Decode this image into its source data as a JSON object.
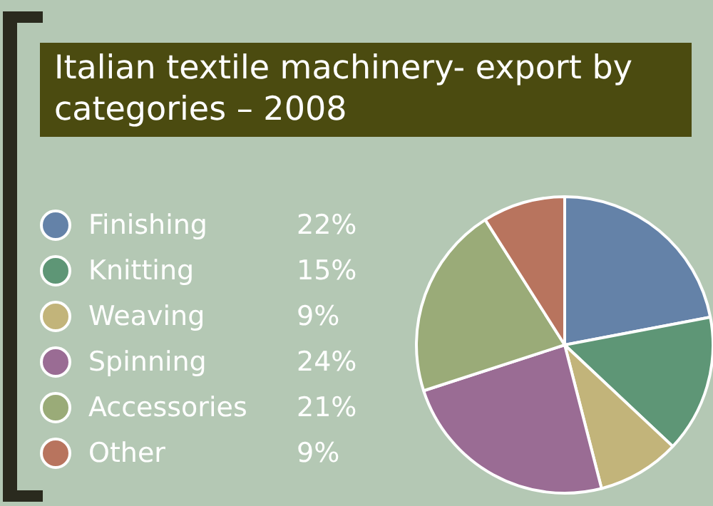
{
  "chart_data": {
    "type": "pie",
    "title": "Italian textile machinery- export by categories – 2008",
    "categories": [
      "Finishing",
      "Knitting",
      "Weaving",
      "Spinning",
      "Accessories",
      "Other"
    ],
    "values": [
      22,
      15,
      9,
      24,
      21,
      9
    ],
    "colors": [
      "#6482a8",
      "#5e9676",
      "#c2b47a",
      "#9a6c94",
      "#9aab78",
      "#b8745e"
    ],
    "value_labels": [
      "22%",
      "15%",
      "9%",
      "24%",
      "21%",
      "9%"
    ],
    "legend": "left"
  }
}
